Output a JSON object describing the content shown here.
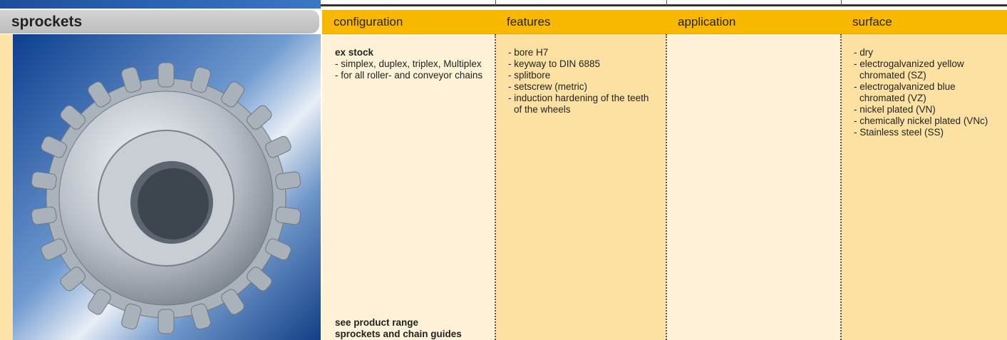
{
  "header": {
    "title": "sprockets"
  },
  "columns": [
    {
      "header": "configuration",
      "lead": "ex stock",
      "items": [
        "- simplex, duplex, triplex, Multiplex",
        "- for all roller- and conveyor chains"
      ],
      "footer": [
        "see product range",
        "sprockets and chain guides"
      ]
    },
    {
      "header": "features",
      "items": [
        "- bore H7",
        "- keyway to DIN 6885",
        "- splitbore",
        "- setscrew (metric)",
        "- induction hardening of the teeth of the wheels"
      ]
    },
    {
      "header": "application",
      "items": []
    },
    {
      "header": "surface",
      "items": [
        "- dry",
        "- electrogalvanized yellow chromated (SZ)",
        "- electrogalvanized blue chromated (VZ)",
        "- nickel plated (VN)",
        "- chemically nickel plated (VNc)",
        "- Stainless steel (SS)"
      ]
    }
  ]
}
